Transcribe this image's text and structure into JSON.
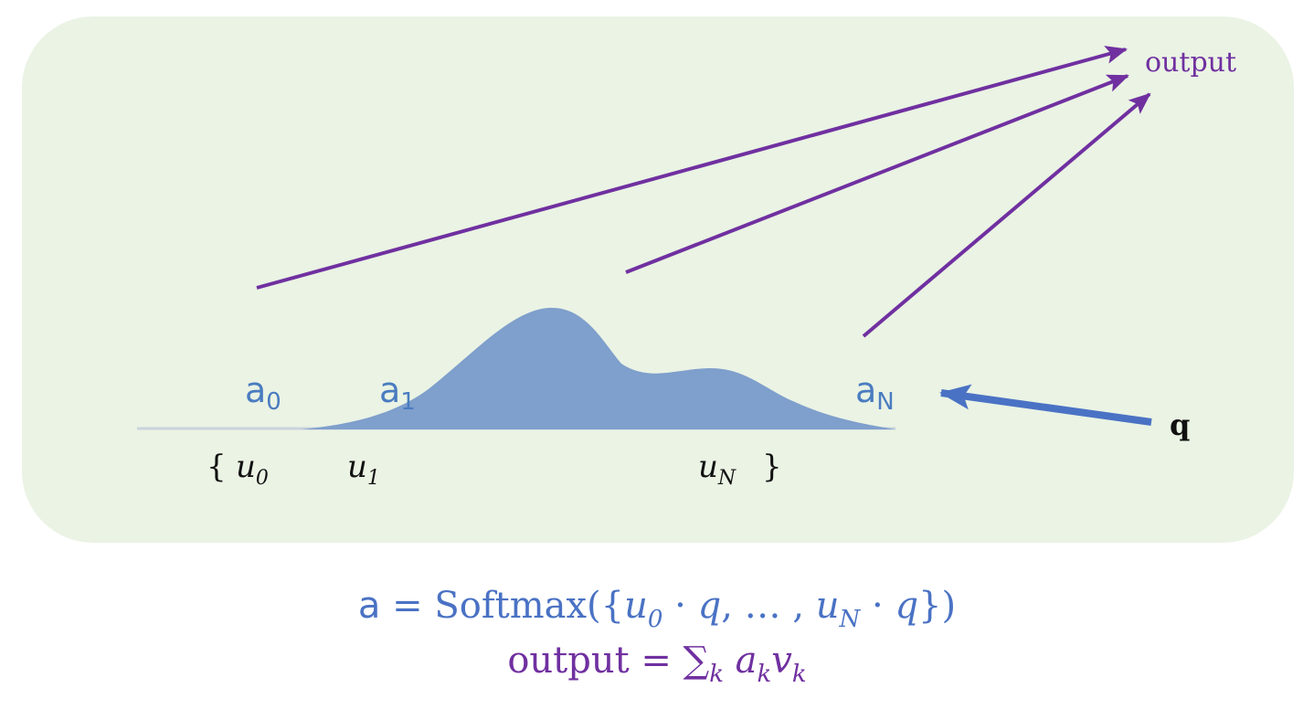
{
  "labels": {
    "a0": {
      "base": "a",
      "sub": "0"
    },
    "a1": {
      "base": "a",
      "sub": "1"
    },
    "aN": {
      "base": "a",
      "sub": "N"
    },
    "u0": {
      "base": "u",
      "sub": "0"
    },
    "u1": {
      "base": "u",
      "sub": "1"
    },
    "uN": {
      "base": "u",
      "sub": "N"
    },
    "brace_open": "{",
    "brace_close": "}",
    "output": "output",
    "q": "q"
  },
  "formula1": {
    "lhs": "a",
    "eq": " = Softmax({",
    "u0": "u",
    "u0_sub": "0",
    "dot1": " · ",
    "q1": "q",
    "mid": ", … , ",
    "uN": "u",
    "uN_sub": "N",
    "dot2": " · ",
    "q2": "q",
    "close": "})"
  },
  "formula2": {
    "lhs": "output",
    "eq": " = ",
    "sum": "∑",
    "sum_sub": "k",
    "a": " a",
    "a_sub": "k",
    "v": "v",
    "v_sub": "k"
  },
  "colors": {
    "panel": "#eaf3e4",
    "distribution": "#7f9fcc",
    "arrow_output": "#7030a0",
    "arrow_q": "#4a72c4",
    "formula1": "#4a72c4",
    "formula2": "#7030a0"
  }
}
